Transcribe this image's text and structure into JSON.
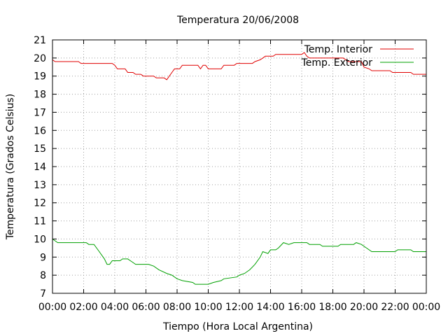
{
  "chart_data": {
    "type": "line",
    "title": "Temperatura 20/06/2008",
    "xlabel": "Tiempo (Hora Local Argentina)",
    "ylabel": "Temperatura (Grados Celsius)",
    "xlim": [
      "00:00",
      "24:00"
    ],
    "ylim": [
      7,
      21
    ],
    "grid": true,
    "legend_position": "top-right",
    "x_ticks": [
      "00:00",
      "02:00",
      "04:00",
      "06:00",
      "08:00",
      "10:00",
      "12:00",
      "14:00",
      "16:00",
      "18:00",
      "20:00",
      "22:00",
      "00:00"
    ],
    "y_ticks": [
      "7",
      "8",
      "9",
      "10",
      "11",
      "12",
      "13",
      "14",
      "15",
      "16",
      "17",
      "18",
      "19",
      "20",
      "21"
    ],
    "series": [
      {
        "name": "Temp. Interior",
        "color": "#e00000",
        "points": [
          [
            "00:00",
            19.9
          ],
          [
            "00:10",
            19.8
          ],
          [
            "01:40",
            19.8
          ],
          [
            "01:50",
            19.7
          ],
          [
            "03:50",
            19.7
          ],
          [
            "04:00",
            19.6
          ],
          [
            "04:10",
            19.4
          ],
          [
            "04:40",
            19.4
          ],
          [
            "04:50",
            19.2
          ],
          [
            "05:10",
            19.2
          ],
          [
            "05:20",
            19.1
          ],
          [
            "05:40",
            19.1
          ],
          [
            "05:50",
            19.0
          ],
          [
            "06:30",
            19.0
          ],
          [
            "06:40",
            18.9
          ],
          [
            "07:10",
            18.9
          ],
          [
            "07:20",
            18.8
          ],
          [
            "07:30",
            19.0
          ],
          [
            "07:40",
            19.2
          ],
          [
            "07:50",
            19.4
          ],
          [
            "08:10",
            19.4
          ],
          [
            "08:20",
            19.6
          ],
          [
            "09:20",
            19.6
          ],
          [
            "09:30",
            19.4
          ],
          [
            "09:40",
            19.6
          ],
          [
            "09:50",
            19.6
          ],
          [
            "10:00",
            19.4
          ],
          [
            "10:50",
            19.4
          ],
          [
            "11:00",
            19.6
          ],
          [
            "11:40",
            19.6
          ],
          [
            "11:50",
            19.7
          ],
          [
            "12:50",
            19.7
          ],
          [
            "13:00",
            19.8
          ],
          [
            "13:20",
            19.9
          ],
          [
            "13:30",
            20.0
          ],
          [
            "13:40",
            20.1
          ],
          [
            "14:10",
            20.1
          ],
          [
            "14:20",
            20.2
          ],
          [
            "16:00",
            20.2
          ],
          [
            "16:10",
            20.3
          ],
          [
            "16:20",
            20.1
          ],
          [
            "16:30",
            20.0
          ],
          [
            "18:40",
            20.0
          ],
          [
            "19:00",
            19.8
          ],
          [
            "19:50",
            19.8
          ],
          [
            "20:00",
            19.5
          ],
          [
            "20:20",
            19.4
          ],
          [
            "20:30",
            19.3
          ],
          [
            "21:40",
            19.3
          ],
          [
            "21:50",
            19.2
          ],
          [
            "23:00",
            19.2
          ],
          [
            "23:10",
            19.1
          ],
          [
            "24:00",
            19.1
          ]
        ]
      },
      {
        "name": "Temp. Exterior",
        "color": "#00a000",
        "points": [
          [
            "00:00",
            10.0
          ],
          [
            "00:10",
            9.9
          ],
          [
            "00:20",
            9.8
          ],
          [
            "02:10",
            9.8
          ],
          [
            "02:20",
            9.7
          ],
          [
            "02:40",
            9.7
          ],
          [
            "03:00",
            9.3
          ],
          [
            "03:20",
            8.9
          ],
          [
            "03:30",
            8.6
          ],
          [
            "03:40",
            8.6
          ],
          [
            "03:50",
            8.8
          ],
          [
            "04:20",
            8.8
          ],
          [
            "04:30",
            8.9
          ],
          [
            "04:50",
            8.9
          ],
          [
            "05:00",
            8.8
          ],
          [
            "05:10",
            8.7
          ],
          [
            "05:20",
            8.6
          ],
          [
            "06:10",
            8.6
          ],
          [
            "06:30",
            8.5
          ],
          [
            "06:50",
            8.3
          ],
          [
            "07:20",
            8.1
          ],
          [
            "07:40",
            8.0
          ],
          [
            "08:00",
            7.8
          ],
          [
            "08:20",
            7.7
          ],
          [
            "09:00",
            7.6
          ],
          [
            "09:10",
            7.5
          ],
          [
            "10:00",
            7.5
          ],
          [
            "10:20",
            7.6
          ],
          [
            "10:50",
            7.7
          ],
          [
            "11:00",
            7.8
          ],
          [
            "11:50",
            7.9
          ],
          [
            "12:00",
            8.0
          ],
          [
            "12:20",
            8.1
          ],
          [
            "12:40",
            8.3
          ],
          [
            "13:00",
            8.6
          ],
          [
            "13:20",
            9.0
          ],
          [
            "13:30",
            9.3
          ],
          [
            "13:50",
            9.2
          ],
          [
            "14:00",
            9.4
          ],
          [
            "14:20",
            9.4
          ],
          [
            "14:30",
            9.5
          ],
          [
            "14:50",
            9.8
          ],
          [
            "15:10",
            9.7
          ],
          [
            "15:30",
            9.8
          ],
          [
            "16:20",
            9.8
          ],
          [
            "16:30",
            9.7
          ],
          [
            "17:10",
            9.7
          ],
          [
            "17:20",
            9.6
          ],
          [
            "18:20",
            9.6
          ],
          [
            "18:30",
            9.7
          ],
          [
            "19:20",
            9.7
          ],
          [
            "19:30",
            9.8
          ],
          [
            "19:50",
            9.7
          ],
          [
            "20:10",
            9.5
          ],
          [
            "20:30",
            9.3
          ],
          [
            "22:00",
            9.3
          ],
          [
            "22:10",
            9.4
          ],
          [
            "23:00",
            9.4
          ],
          [
            "23:10",
            9.3
          ],
          [
            "24:00",
            9.3
          ]
        ]
      }
    ]
  }
}
